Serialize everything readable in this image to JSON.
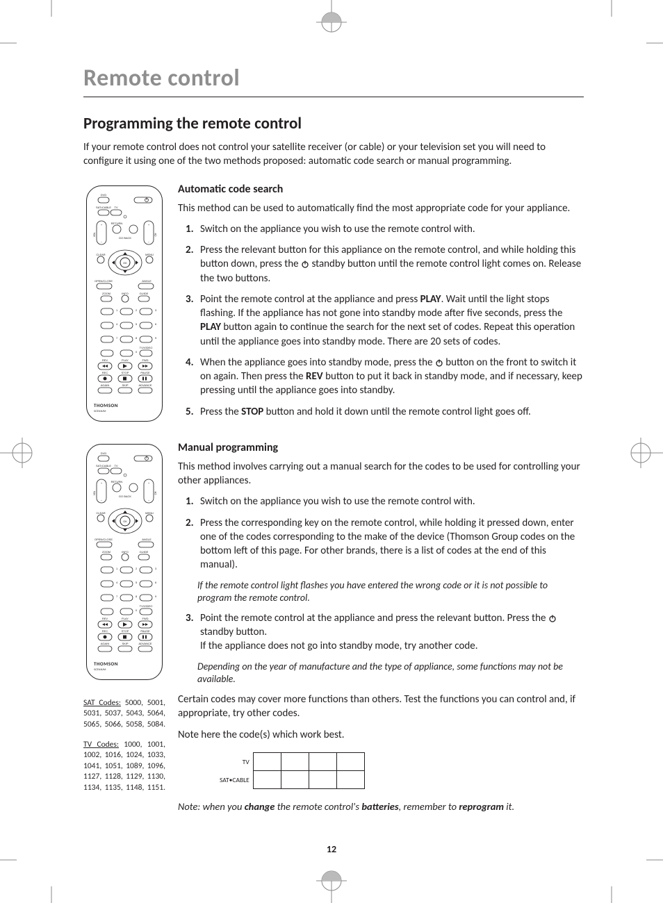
{
  "chapter": "Remote control",
  "section": "Programming the remote control",
  "intro": "If your remote control does not control your satellite receiver (or cable) or your television set you will need to configure it using one of the two methods proposed: automatic code search or manual programming.",
  "auto": {
    "title": "Automatic code search",
    "lead": "This method can be used to automatically find the most appropriate code for your appliance.",
    "steps": [
      "Switch on the appliance you wish to use the remote control with.",
      "Press the relevant button for this appliance on the remote control, and while holding this button down, press the {PWR} standby button until the remote control light comes on. Release the two buttons.",
      "Point the remote control at the appliance and press <b>PLAY</b>. Wait until the light stops flashing. If the appliance has not gone into standby mode after five seconds, press the <b>PLAY</b> button again to continue the search for the next set of codes. Repeat this operation until the appliance goes into standby mode. There are 20 sets of codes.",
      "When the appliance goes into standby mode, press the {PWR} button on the front to switch it on again. Then press the <b>REV</b> button to put it back in standby mode, and if necessary, keep pressing until the appliance goes into standby.",
      "Press the <b>STOP</b> button and hold it down until the remote control light goes off."
    ]
  },
  "manual": {
    "title": "Manual programming",
    "lead": "This method involves carrying out a manual search for the codes to be used for controlling your other appliances.",
    "steps": [
      "Switch on the appliance you wish to use the remote control with.",
      "Press the corresponding key on the remote control, while holding it pressed down, enter one of the codes corresponding to the make of the device (Thomson Group codes on the bottom left of this page. For other brands, there is a list of codes at the end of this manual).",
      "Point the remote control at the appliance and press the relevant button. Press the {PWR} standby button.<br>If the appliance does not go into standby mode, try another code."
    ],
    "note1": "If the remote control light flashes you have entered the wrong code or it is not possible to program the remote control.",
    "note2": "Depending on the year of manufacture and the type of appliance, some functions may not be available.",
    "tail1": "Certain codes may cover more functions than others. Test the functions you can control and, if appropriate, try other codes.",
    "tail2": "Note here the code(s) which work best."
  },
  "code_table": {
    "row1": "TV",
    "row2": "SAT•CABLE"
  },
  "final_note": "Note: when you <b>change</b> the remote control's <b>batteries</b>, remember to <b>reprogram</b> it.",
  "sat_codes": {
    "hdr": "SAT Codes:",
    "body": " 5000, 5001, 5031, 5037, 5043, 5064, 5065, 5066, 5058, 5084."
  },
  "tv_codes": {
    "hdr": "TV Codes:",
    "body": " 1000, 1001, 1002, 1016, 1024, 1033, 1041, 1051, 1089, 1096, 1127, 1128, 1129, 1130, 1134, 1135, 1148, 1151."
  },
  "page_number": "12",
  "remote": {
    "brand": "THOMSON",
    "tiny_labels": [
      "DVD",
      "SAT•CABLE",
      "TV",
      "RETURN",
      "GO BACK",
      "CLEAR",
      "MENU",
      "OK",
      "OPEN/CLOSE",
      "ANGLE",
      "ZOOM",
      "INFO",
      "GUIDE",
      "TV/VIDEO",
      "REV",
      "PLAY",
      "FWD",
      "REC",
      "STOP",
      "PAUSE",
      "AGAIN",
      "SKIP",
      "ADVANCE"
    ],
    "numpad": [
      "1",
      "2",
      "3",
      "4",
      "5",
      "6",
      "7",
      "8",
      "9",
      "0"
    ]
  }
}
